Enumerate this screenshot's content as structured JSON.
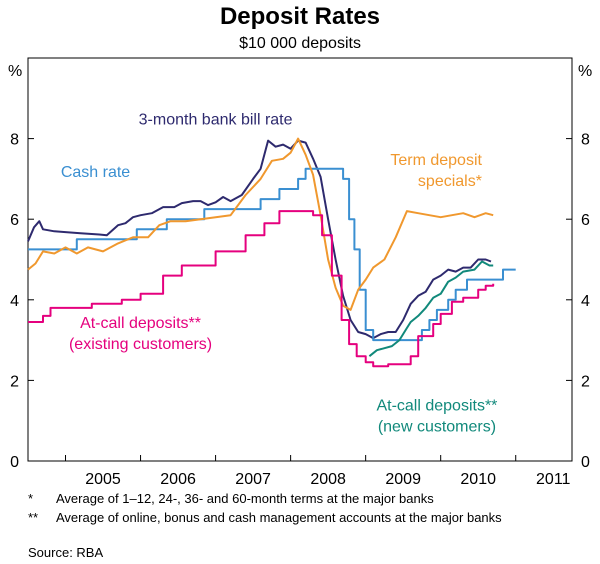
{
  "chart_data": {
    "type": "line",
    "title": "Deposit Rates",
    "subtitle": "$10 000 deposits",
    "yunit_left": "%",
    "yunit_right": "%",
    "ylim": [
      0,
      10
    ],
    "yticks": [
      0,
      2,
      4,
      6,
      8
    ],
    "xlim": [
      2004.5,
      2011.75
    ],
    "xticks": [
      {
        "label": "2005",
        "value": 2005
      },
      {
        "label": "2006",
        "value": 2006
      },
      {
        "label": "2007",
        "value": 2007
      },
      {
        "label": "2008",
        "value": 2008
      },
      {
        "label": "2009",
        "value": 2009
      },
      {
        "label": "2010",
        "value": 2010
      },
      {
        "label": "2011",
        "value": 2011
      }
    ],
    "grid": false,
    "series": [
      {
        "name": "3-month bank bill rate",
        "color": "#2e2a6e",
        "step": false,
        "points": [
          [
            2004.5,
            5.45
          ],
          [
            2004.58,
            5.8
          ],
          [
            2004.65,
            5.95
          ],
          [
            2004.7,
            5.75
          ],
          [
            2004.85,
            5.7
          ],
          [
            2005.0,
            5.68
          ],
          [
            2005.2,
            5.65
          ],
          [
            2005.45,
            5.62
          ],
          [
            2005.55,
            5.6
          ],
          [
            2005.7,
            5.85
          ],
          [
            2005.8,
            5.9
          ],
          [
            2005.9,
            6.05
          ],
          [
            2006.0,
            6.1
          ],
          [
            2006.15,
            6.15
          ],
          [
            2006.3,
            6.3
          ],
          [
            2006.45,
            6.3
          ],
          [
            2006.55,
            6.4
          ],
          [
            2006.7,
            6.45
          ],
          [
            2006.8,
            6.45
          ],
          [
            2006.9,
            6.35
          ],
          [
            2007.0,
            6.42
          ],
          [
            2007.1,
            6.55
          ],
          [
            2007.2,
            6.45
          ],
          [
            2007.35,
            6.6
          ],
          [
            2007.5,
            7.0
          ],
          [
            2007.6,
            7.25
          ],
          [
            2007.7,
            7.95
          ],
          [
            2007.8,
            7.8
          ],
          [
            2007.9,
            7.85
          ],
          [
            2008.0,
            7.75
          ],
          [
            2008.1,
            7.95
          ],
          [
            2008.2,
            7.9
          ],
          [
            2008.3,
            7.5
          ],
          [
            2008.4,
            7.05
          ],
          [
            2008.5,
            6.0
          ],
          [
            2008.6,
            5.0
          ],
          [
            2008.7,
            4.1
          ],
          [
            2008.8,
            3.5
          ],
          [
            2008.9,
            3.2
          ],
          [
            2009.0,
            3.15
          ],
          [
            2009.1,
            3.05
          ],
          [
            2009.2,
            3.15
          ],
          [
            2009.3,
            3.2
          ],
          [
            2009.4,
            3.2
          ],
          [
            2009.5,
            3.5
          ],
          [
            2009.6,
            3.9
          ],
          [
            2009.7,
            4.1
          ],
          [
            2009.8,
            4.2
          ],
          [
            2009.9,
            4.5
          ],
          [
            2010.0,
            4.6
          ],
          [
            2010.1,
            4.75
          ],
          [
            2010.2,
            4.7
          ],
          [
            2010.3,
            4.8
          ],
          [
            2010.4,
            4.8
          ],
          [
            2010.5,
            5.0
          ],
          [
            2010.6,
            5.0
          ],
          [
            2010.67,
            4.95
          ]
        ]
      },
      {
        "name": "Cash rate",
        "color": "#3a8fd1",
        "step": true,
        "points": [
          [
            2004.5,
            5.25
          ],
          [
            2005.15,
            5.5
          ],
          [
            2005.95,
            5.75
          ],
          [
            2006.35,
            6.0
          ],
          [
            2006.85,
            6.25
          ],
          [
            2007.6,
            6.5
          ],
          [
            2007.85,
            6.75
          ],
          [
            2008.1,
            7.0
          ],
          [
            2008.2,
            7.25
          ],
          [
            2008.7,
            7.0
          ],
          [
            2008.78,
            6.0
          ],
          [
            2008.85,
            5.25
          ],
          [
            2008.92,
            4.25
          ],
          [
            2009.0,
            3.25
          ],
          [
            2009.1,
            3.0
          ],
          [
            2009.3,
            3.0
          ],
          [
            2009.75,
            3.25
          ],
          [
            2009.85,
            3.5
          ],
          [
            2009.95,
            3.75
          ],
          [
            2010.1,
            4.0
          ],
          [
            2010.2,
            4.25
          ],
          [
            2010.35,
            4.5
          ],
          [
            2010.83,
            4.75
          ],
          [
            2011.0,
            4.75
          ]
        ]
      },
      {
        "name": "Term deposit specials*",
        "color": "#f0982e",
        "step": false,
        "points": [
          [
            2004.5,
            4.75
          ],
          [
            2004.6,
            4.9
          ],
          [
            2004.7,
            5.2
          ],
          [
            2004.85,
            5.15
          ],
          [
            2005.0,
            5.3
          ],
          [
            2005.15,
            5.15
          ],
          [
            2005.3,
            5.3
          ],
          [
            2005.5,
            5.2
          ],
          [
            2005.7,
            5.4
          ],
          [
            2005.9,
            5.55
          ],
          [
            2006.1,
            5.55
          ],
          [
            2006.25,
            5.85
          ],
          [
            2006.4,
            5.95
          ],
          [
            2006.6,
            5.95
          ],
          [
            2006.8,
            6.0
          ],
          [
            2007.0,
            6.05
          ],
          [
            2007.2,
            6.1
          ],
          [
            2007.4,
            6.6
          ],
          [
            2007.6,
            7.0
          ],
          [
            2007.75,
            7.45
          ],
          [
            2007.9,
            7.5
          ],
          [
            2008.0,
            7.65
          ],
          [
            2008.1,
            8.0
          ],
          [
            2008.2,
            7.6
          ],
          [
            2008.3,
            7.1
          ],
          [
            2008.4,
            6.1
          ],
          [
            2008.5,
            5.0
          ],
          [
            2008.6,
            4.3
          ],
          [
            2008.7,
            3.85
          ],
          [
            2008.8,
            3.75
          ],
          [
            2008.9,
            4.25
          ],
          [
            2009.0,
            4.5
          ],
          [
            2009.1,
            4.8
          ],
          [
            2009.25,
            5.0
          ],
          [
            2009.4,
            5.55
          ],
          [
            2009.55,
            6.2
          ],
          [
            2009.7,
            6.15
          ],
          [
            2009.85,
            6.1
          ],
          [
            2010.0,
            6.05
          ],
          [
            2010.15,
            6.1
          ],
          [
            2010.3,
            6.15
          ],
          [
            2010.45,
            6.05
          ],
          [
            2010.6,
            6.15
          ],
          [
            2010.7,
            6.1
          ]
        ]
      },
      {
        "name": "At-call deposits** (existing customers)",
        "color": "#e5007e",
        "step": true,
        "points": [
          [
            2004.5,
            3.45
          ],
          [
            2004.7,
            3.6
          ],
          [
            2004.8,
            3.8
          ],
          [
            2005.35,
            3.9
          ],
          [
            2005.75,
            4.0
          ],
          [
            2006.0,
            4.15
          ],
          [
            2006.3,
            4.6
          ],
          [
            2006.55,
            4.85
          ],
          [
            2007.0,
            5.2
          ],
          [
            2007.4,
            5.6
          ],
          [
            2007.65,
            5.9
          ],
          [
            2007.85,
            6.2
          ],
          [
            2008.3,
            6.1
          ],
          [
            2008.42,
            5.6
          ],
          [
            2008.55,
            4.6
          ],
          [
            2008.68,
            3.5
          ],
          [
            2008.78,
            2.9
          ],
          [
            2008.88,
            2.6
          ],
          [
            2009.0,
            2.45
          ],
          [
            2009.1,
            2.35
          ],
          [
            2009.3,
            2.4
          ],
          [
            2009.6,
            2.6
          ],
          [
            2009.7,
            3.1
          ],
          [
            2009.9,
            3.4
          ],
          [
            2010.0,
            3.65
          ],
          [
            2010.15,
            3.95
          ],
          [
            2010.3,
            4.05
          ],
          [
            2010.5,
            4.25
          ],
          [
            2010.6,
            4.35
          ],
          [
            2010.7,
            4.4
          ]
        ]
      },
      {
        "name": "At-call deposits** (new customers)",
        "color": "#11897b",
        "step": false,
        "points": [
          [
            2009.05,
            2.6
          ],
          [
            2009.15,
            2.75
          ],
          [
            2009.25,
            2.8
          ],
          [
            2009.35,
            2.85
          ],
          [
            2009.45,
            3.0
          ],
          [
            2009.55,
            3.3
          ],
          [
            2009.6,
            3.45
          ],
          [
            2009.7,
            3.6
          ],
          [
            2009.8,
            3.8
          ],
          [
            2009.9,
            4.05
          ],
          [
            2010.0,
            4.15
          ],
          [
            2010.1,
            4.45
          ],
          [
            2010.2,
            4.55
          ],
          [
            2010.3,
            4.7
          ],
          [
            2010.45,
            4.75
          ],
          [
            2010.55,
            4.95
          ],
          [
            2010.65,
            4.85
          ],
          [
            2010.7,
            4.85
          ]
        ]
      }
    ],
    "annotations": [
      {
        "id": "bill",
        "lines": [
          "3-month bank bill rate"
        ],
        "color": "#2e2a6e",
        "x": 2007.0,
        "y": 8.35,
        "anchor": "middle"
      },
      {
        "id": "cash",
        "lines": [
          "Cash rate"
        ],
        "color": "#3a8fd1",
        "x": 2005.4,
        "y": 7.05,
        "anchor": "middle"
      },
      {
        "id": "term",
        "lines": [
          "Term deposit",
          "specials*"
        ],
        "color": "#f0982e",
        "x": 2010.55,
        "y": 7.35,
        "anchor": "end"
      },
      {
        "id": "atcall-existing",
        "lines": [
          "At-call deposits**",
          "(existing customers)"
        ],
        "color": "#e5007e",
        "x": 2006.0,
        "y": 3.3,
        "anchor": "middle"
      },
      {
        "id": "atcall-new",
        "lines": [
          "At-call deposits**",
          "(new customers)"
        ],
        "color": "#11897b",
        "x": 2009.95,
        "y": 1.25,
        "anchor": "middle"
      }
    ]
  },
  "footnotes": [
    {
      "mark": "*",
      "text": "Average of 1–12, 24-, 36- and 60-month terms at the major banks"
    },
    {
      "mark": "**",
      "text": "Average of online, bonus and cash management accounts at the major banks"
    }
  ],
  "source": "Source: RBA"
}
